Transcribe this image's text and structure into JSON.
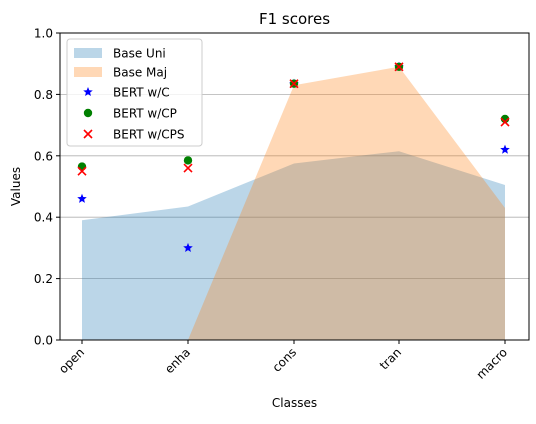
{
  "chart_data": {
    "type": "area",
    "title": "F1 scores",
    "xlabel": "Classes",
    "ylabel": "Values",
    "categories": [
      "open",
      "enha",
      "cons",
      "tran",
      "macro"
    ],
    "ylim": [
      0,
      1.0
    ],
    "yticks": [
      "0.0",
      "0.2",
      "0.4",
      "0.6",
      "0.8",
      "1.0"
    ],
    "ytick_values": [
      0,
      0.2,
      0.4,
      0.6,
      0.8,
      1.0
    ],
    "grid": "horizontal",
    "legend_position": "top-left",
    "areas": [
      {
        "name": "Base Uni",
        "color": "#1f77b4",
        "opacity": 0.3,
        "values": [
          0.39,
          0.435,
          0.575,
          0.615,
          0.505
        ]
      },
      {
        "name": "Base Maj",
        "color": "#ff7f0e",
        "opacity": 0.3,
        "values": [
          0.0,
          0.0,
          0.83,
          0.89,
          0.43
        ]
      }
    ],
    "series": [
      {
        "name": "BERT w/C",
        "marker": "star",
        "color": "#0000ff",
        "values": [
          0.46,
          0.3,
          0.835,
          0.89,
          0.62
        ]
      },
      {
        "name": "BERT w/CP",
        "marker": "circle",
        "color": "#008000",
        "values": [
          0.565,
          0.585,
          0.835,
          0.89,
          0.72
        ]
      },
      {
        "name": "BERT w/CPS",
        "marker": "x",
        "color": "#ff0000",
        "values": [
          0.55,
          0.56,
          0.835,
          0.89,
          0.71
        ]
      }
    ]
  }
}
